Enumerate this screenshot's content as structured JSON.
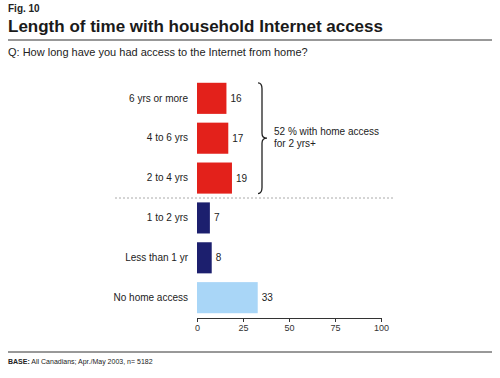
{
  "chart_data": {
    "type": "bar",
    "orientation": "horizontal",
    "figure_label": "Fig. 10",
    "title": "Length of time with household Internet access",
    "subtitle": "Q: How long have you had access to the Internet from home?",
    "categories": [
      "6 yrs or more",
      "4 to 6 yrs",
      "2 to 4 yrs",
      "1 to 2 yrs",
      "Less than 1 yr",
      "No home access"
    ],
    "values": [
      16,
      17,
      19,
      7,
      8,
      33
    ],
    "colors": [
      "#e3211b",
      "#e3211b",
      "#e3211b",
      "#1c1f6e",
      "#1c1f6e",
      "#a9d6f7"
    ],
    "data_labels": true,
    "grid": false,
    "xlim": [
      0,
      100
    ],
    "xticks": [
      0,
      25,
      50,
      75,
      100
    ],
    "annotation": [
      "52 % with home access",
      "for 2 yrs+"
    ],
    "note": "BASE: All Canadians; Apr./May 2003, n= 5182"
  }
}
